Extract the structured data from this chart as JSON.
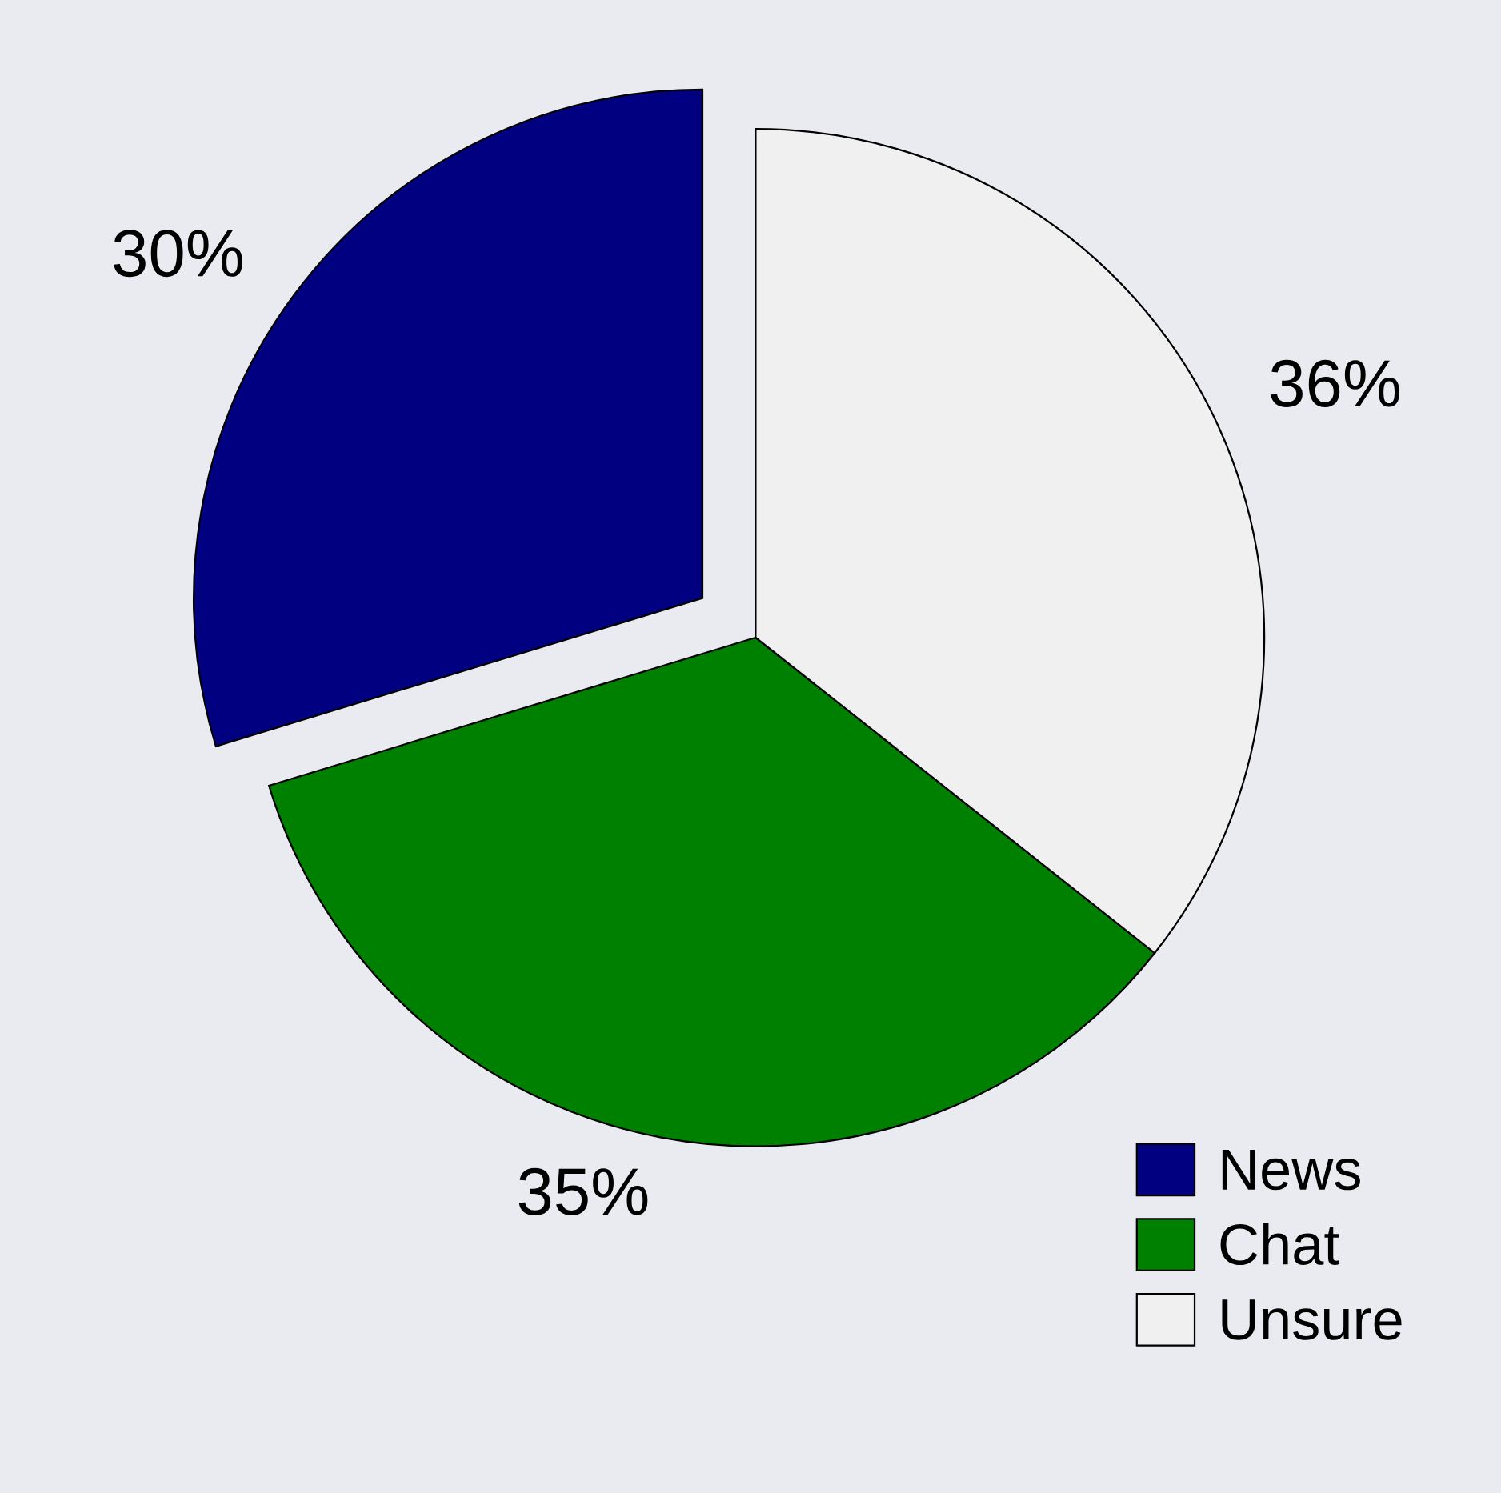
{
  "chart_data": {
    "type": "pie",
    "categories": [
      "News",
      "Chat",
      "Unsure"
    ],
    "values": [
      30,
      35,
      36
    ],
    "colors": [
      "#000080",
      "#008000",
      "#f0f0f0"
    ],
    "value_labels": [
      "30%",
      "35%",
      "36%"
    ],
    "legend": "bottom right"
  }
}
